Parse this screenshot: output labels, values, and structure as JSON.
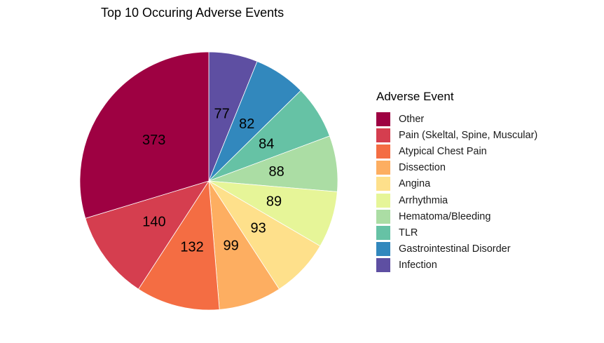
{
  "chart_data": {
    "type": "pie",
    "title": "Top 10 Occuring Adverse Events",
    "legend_title": "Adverse Event",
    "legend_position": "right",
    "categories": [
      "Other",
      "Pain (Skeltal, Spine, Muscular)",
      "Atypical Chest Pain",
      "Dissection",
      "Angina",
      "Arrhythmia",
      "Hematoma/Bleeding",
      "TLR",
      "Gastrointestinal Disorder",
      "Infection"
    ],
    "values": [
      373,
      140,
      132,
      99,
      93,
      89,
      88,
      84,
      82,
      77
    ],
    "colors": [
      "#9E0142",
      "#D53E4F",
      "#F46D43",
      "#FDAE61",
      "#FEE08B",
      "#E6F598",
      "#ABDDA4",
      "#66C2A5",
      "#3288BD",
      "#5E4FA2"
    ]
  }
}
